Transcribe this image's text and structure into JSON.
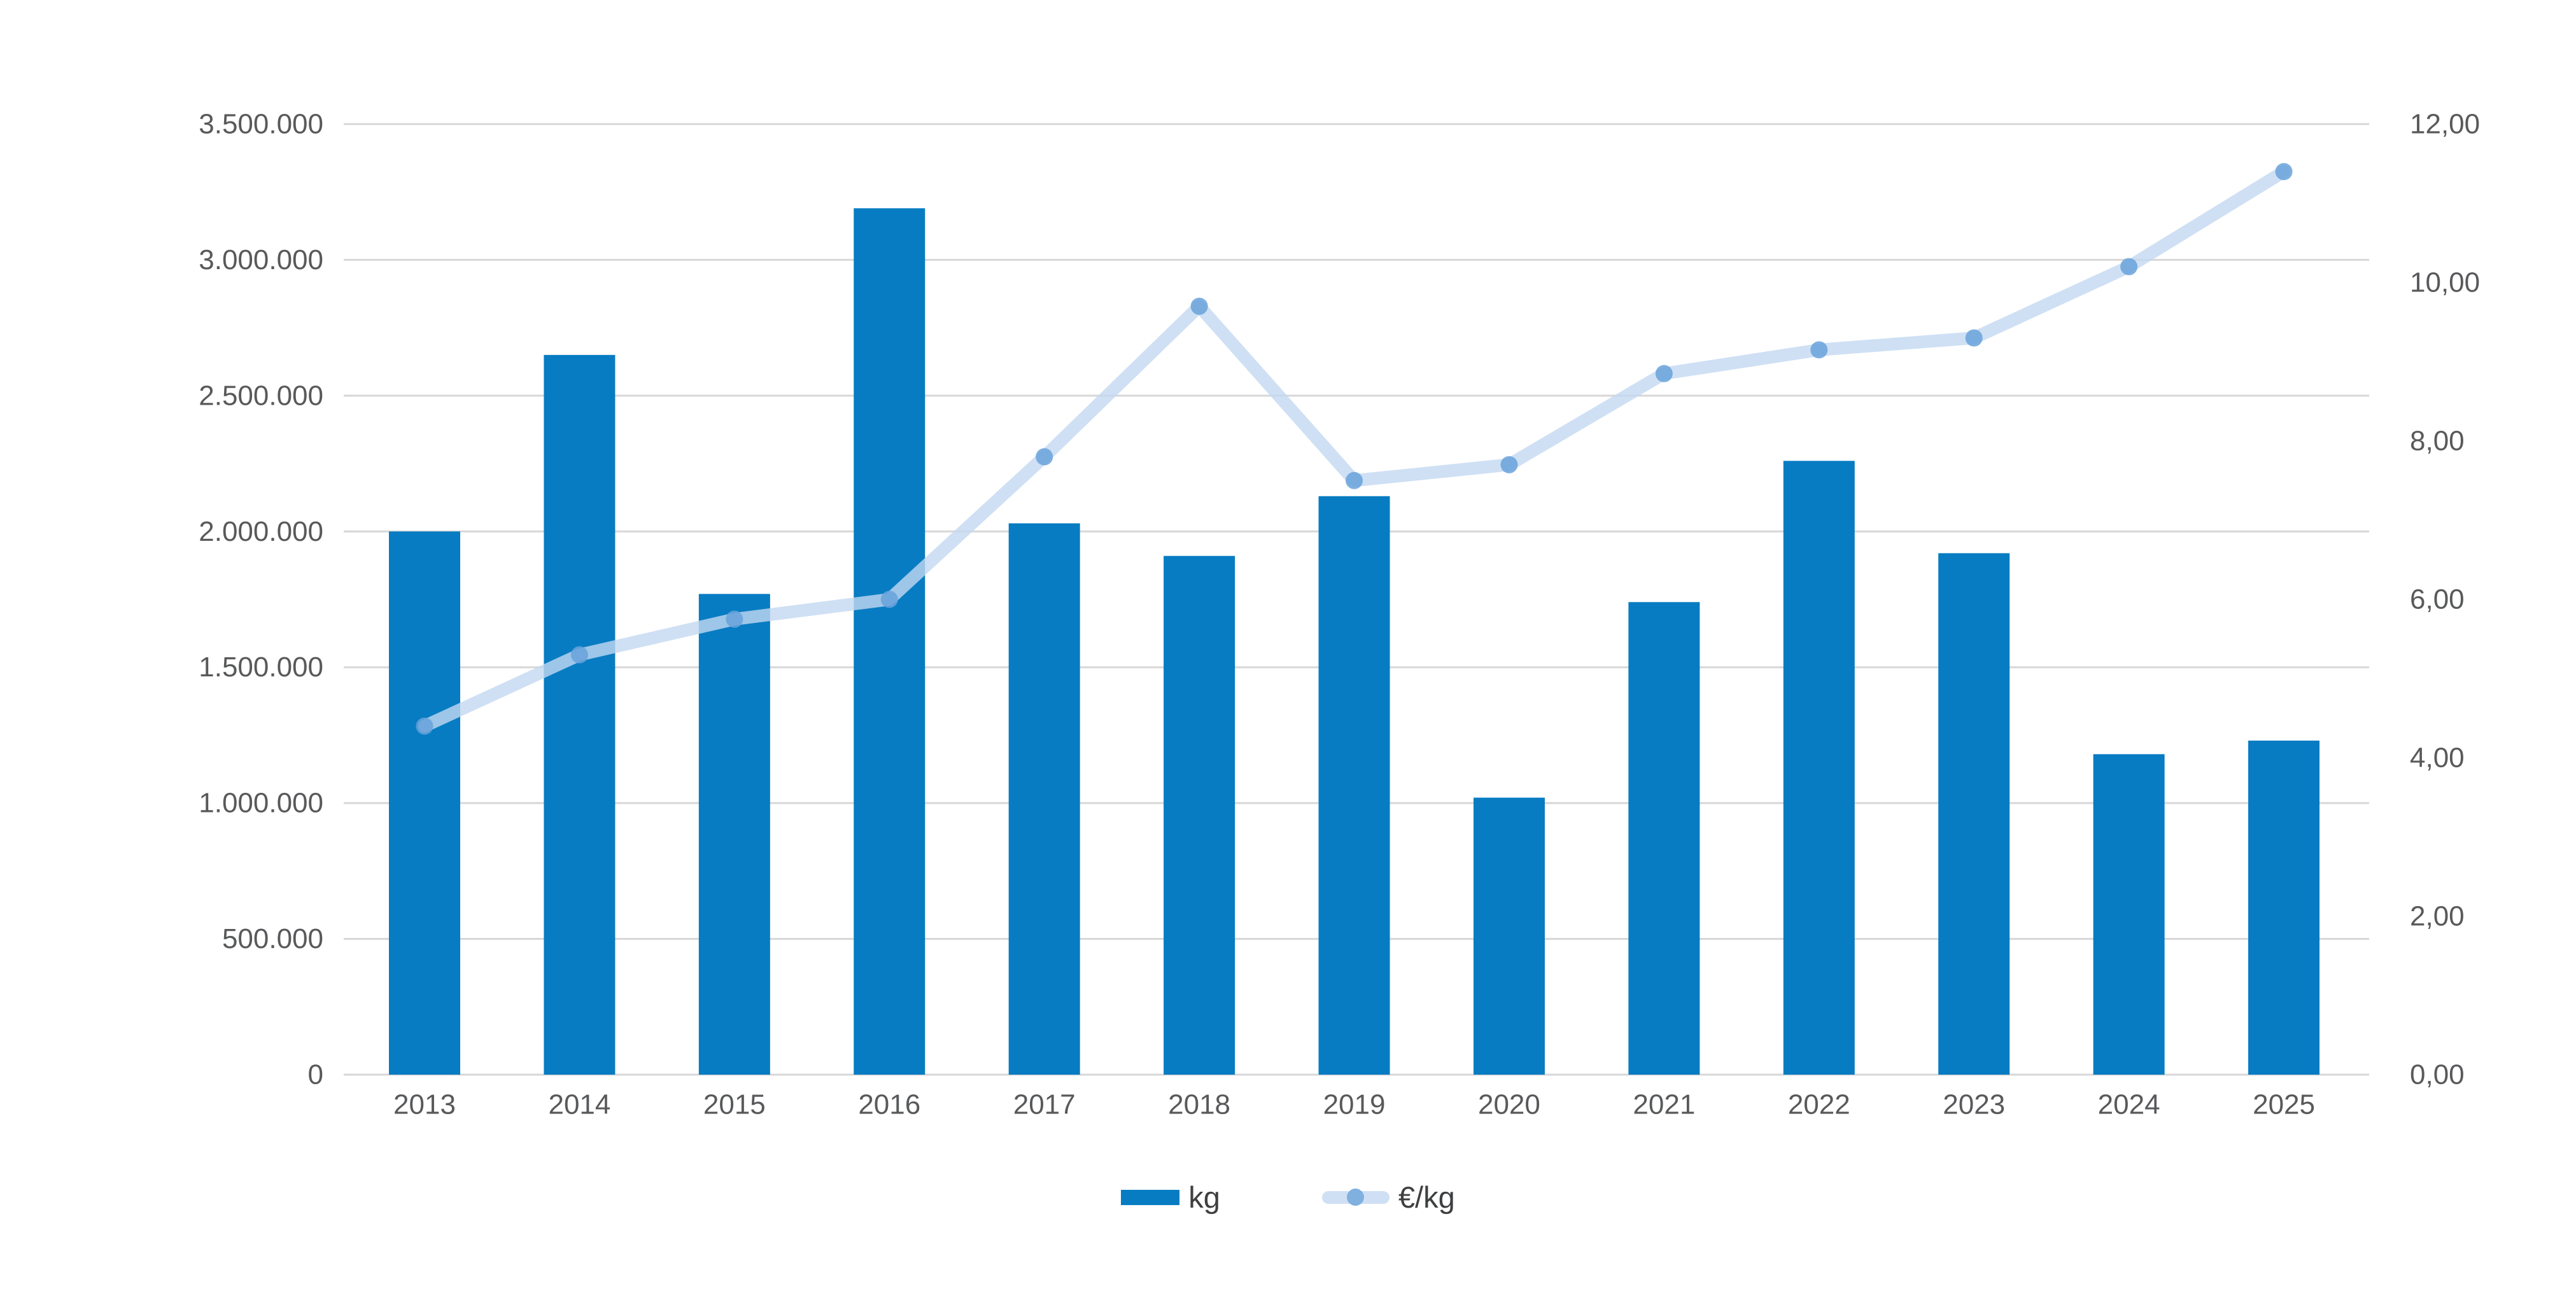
{
  "chart_data": {
    "type": "combo_bar_line",
    "title": "",
    "categories": [
      "2013",
      "2014",
      "2015",
      "2016",
      "2017",
      "2018",
      "2019",
      "2020",
      "2021",
      "2022",
      "2023",
      "2024",
      "2025"
    ],
    "series": [
      {
        "name": "kg",
        "type": "bar",
        "axis": "left",
        "values": [
          2000000,
          2650000,
          1770000,
          3190000,
          2030000,
          1910000,
          2130000,
          1020000,
          1740000,
          2260000,
          1920000,
          1180000,
          1230000
        ]
      },
      {
        "name": "€/kg",
        "type": "line",
        "axis": "right",
        "values": [
          4.4,
          5.3,
          5.75,
          6.0,
          7.8,
          9.7,
          7.5,
          7.7,
          8.85,
          9.15,
          9.3,
          10.2,
          11.4
        ]
      }
    ],
    "left_axis": {
      "min": 0,
      "max": 3500000,
      "step": 500000,
      "tick_labels": [
        "0",
        "500.000",
        "1.000.000",
        "1.500.000",
        "2.000.000",
        "2.500.000",
        "3.000.000",
        "3.500.000"
      ]
    },
    "right_axis": {
      "min": 0,
      "max": 12,
      "step": 2,
      "tick_labels": [
        "0,00",
        "2,00",
        "4,00",
        "6,00",
        "8,00",
        "10,00",
        "12,00"
      ]
    },
    "legend": [
      {
        "label": "kg",
        "swatch": "bar"
      },
      {
        "label": "€/kg",
        "swatch": "line"
      }
    ],
    "grid": true,
    "legend_position": "bottom"
  },
  "colors": {
    "bar": "#077cc2",
    "line": "#c3d8f1",
    "marker": "#69a2db",
    "gridline": "#d7d7d7",
    "axis_text": "#58595b",
    "legend_text": "#3e3f41",
    "background": "#ffffff"
  }
}
